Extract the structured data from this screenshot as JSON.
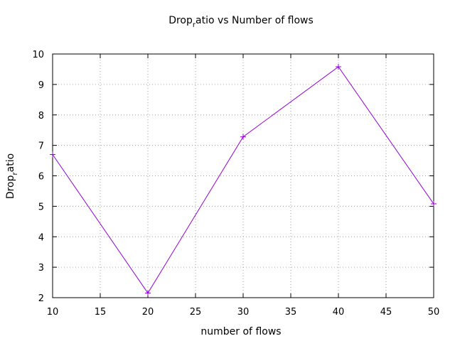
{
  "chart_data": {
    "type": "line",
    "title": "Drop_ratio vs Number of flows",
    "title_parts": {
      "main": "Drop",
      "sub": "r",
      "rest": "atio vs Number of flows"
    },
    "xlabel": "number of flows",
    "ylabel": "Drop_ratio",
    "ylabel_parts": {
      "main": "Drop",
      "sub": "r",
      "rest": "atio"
    },
    "xlim": [
      10,
      50
    ],
    "ylim": [
      2,
      10
    ],
    "xticks": [
      10,
      15,
      20,
      25,
      30,
      35,
      40,
      45,
      50
    ],
    "yticks": [
      2,
      3,
      4,
      5,
      6,
      7,
      8,
      9,
      10
    ],
    "grid": true,
    "legend": "none",
    "series": [
      {
        "color": "#9400d3",
        "marker": "plus",
        "x": [
          10,
          20,
          30,
          40,
          50
        ],
        "y": [
          6.7,
          2.15,
          7.28,
          9.58,
          5.08
        ]
      }
    ]
  }
}
